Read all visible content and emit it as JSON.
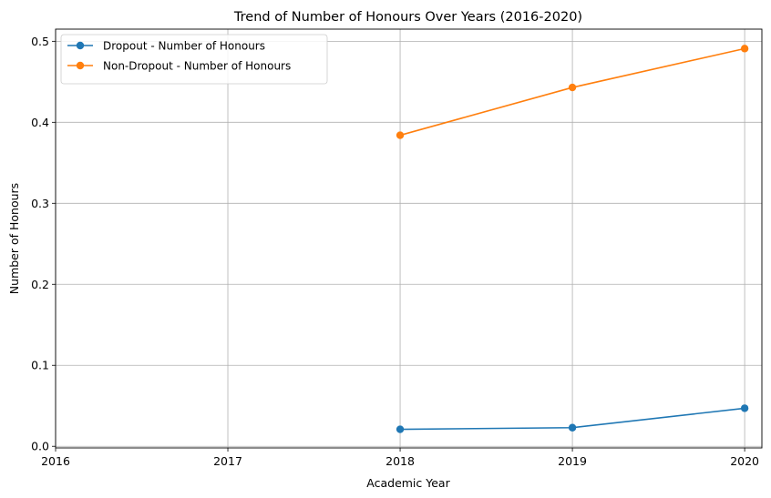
{
  "chart_data": {
    "type": "line",
    "title": "Trend of Number of Honours Over Years (2016-2020)",
    "xlabel": "Academic Year",
    "ylabel": "Number of Honours",
    "xlim": [
      2016,
      2020.1
    ],
    "ylim": [
      -0.002,
      0.515
    ],
    "xticks": [
      2016,
      2017,
      2018,
      2019,
      2020
    ],
    "xtick_labels": [
      "2016",
      "2017",
      "2018",
      "2019",
      "2020"
    ],
    "yticks": [
      0.0,
      0.1,
      0.2,
      0.3,
      0.4,
      0.5
    ],
    "ytick_labels": [
      "0.0",
      "0.1",
      "0.2",
      "0.3",
      "0.4",
      "0.5"
    ],
    "grid": true,
    "legend_position": "top-left",
    "series": [
      {
        "name": "Dropout - Number of Honours",
        "color": "#1f77b4",
        "x": [
          2018,
          2019,
          2020
        ],
        "y": [
          0.021,
          0.023,
          0.047
        ]
      },
      {
        "name": "Non-Dropout - Number of Honours",
        "color": "#ff7f0e",
        "x": [
          2018,
          2019,
          2020
        ],
        "y": [
          0.384,
          0.443,
          0.491
        ]
      }
    ]
  }
}
